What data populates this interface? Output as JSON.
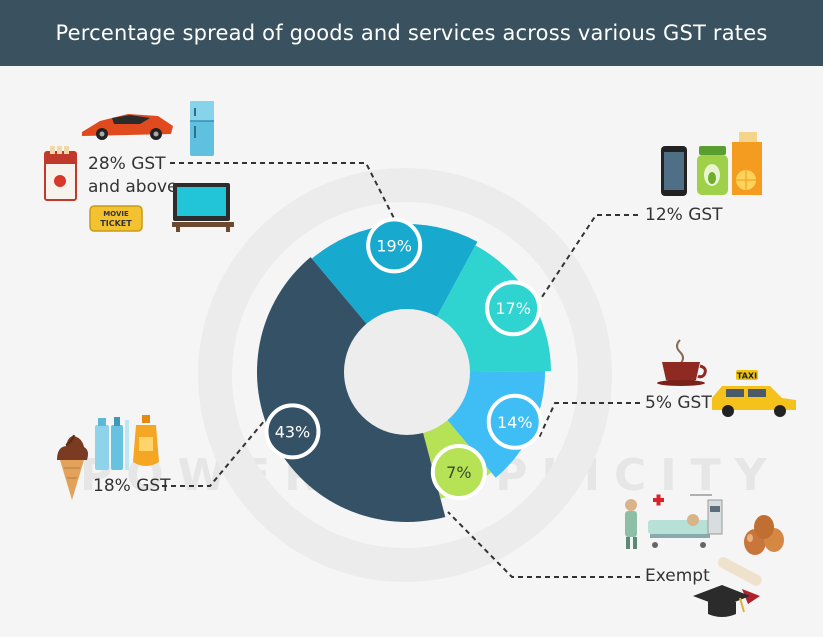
{
  "header": {
    "title": "Percentage spread of goods and services across various GST rates"
  },
  "watermark": "POWER SIMPLICITY",
  "colors": {
    "header_bg": "#3a5260",
    "slice_28": "#18a9cf",
    "slice_12": "#2fd3cf",
    "slice_5": "#3fbdf5",
    "slice_exempt": "#b6e355",
    "slice_18": "#345166"
  },
  "icons": {
    "28": [
      "sports-car-icon",
      "refrigerator-icon",
      "cigarette-pack-icon",
      "movie-ticket-icon",
      "television-icon"
    ],
    "12": [
      "smartphone-icon",
      "jar-icon",
      "juice-carton-icon"
    ],
    "5": [
      "coffee-cup-icon",
      "taxi-icon"
    ],
    "exempt": [
      "hospital-bed-icon",
      "eggs-icon",
      "graduation-cap-icon"
    ],
    "18": [
      "ice-cream-icon",
      "toothpaste-icon",
      "shampoo-bottle-icon"
    ]
  },
  "icon_texts": {
    "movie_ticket": "MOVIE TICKET",
    "taxi": "TAXI"
  },
  "chart_data": {
    "type": "pie",
    "title": "Percentage spread of goods and services across various GST rates",
    "slices": [
      {
        "label": "28% GST and above",
        "value": 19,
        "value_label": "19%"
      },
      {
        "label": "12% GST",
        "value": 17,
        "value_label": "17%"
      },
      {
        "label": "5% GST",
        "value": 14,
        "value_label": "14%"
      },
      {
        "label": "Exempt",
        "value": 7,
        "value_label": "7%"
      },
      {
        "label": "18% GST",
        "value": 43,
        "value_label": "43%"
      }
    ]
  }
}
